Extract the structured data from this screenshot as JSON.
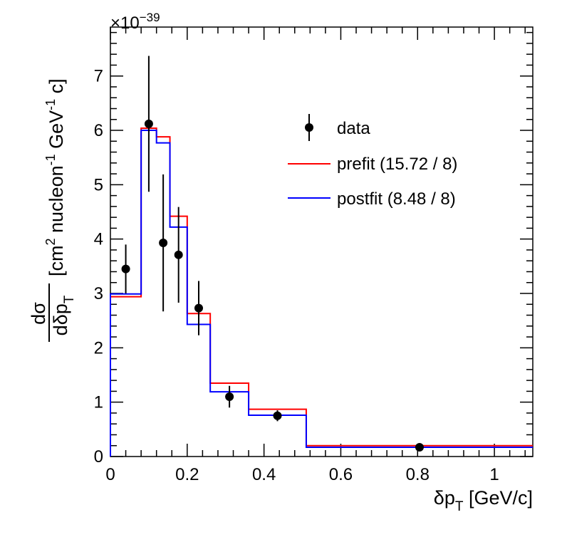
{
  "chart_data": {
    "type": "histogram",
    "title": "",
    "exponent_label": "×10",
    "exponent_power": "−39",
    "xlabel": {
      "main": "δp",
      "sub": "T",
      "unit": " [GeV/c]"
    },
    "ylabel": {
      "num": "dσ",
      "den_main": "dδp",
      "den_sub": "T",
      "part1": "[cm",
      "sup1": "2",
      "part2": " nucleon",
      "sup2": "-1",
      "part3": " GeV",
      "sup3": "-1",
      "part4": " c]"
    },
    "xlim": [
      0,
      1.1
    ],
    "ylim": [
      0,
      7.9
    ],
    "x_ticks": [
      0,
      0.2,
      0.4,
      0.6,
      0.8,
      1
    ],
    "x_tick_labels": [
      "0",
      "0.2",
      "0.4",
      "0.6",
      "0.8",
      "1"
    ],
    "y_ticks": [
      0,
      1,
      2,
      3,
      4,
      5,
      6,
      7
    ],
    "y_tick_labels": [
      "0",
      "1",
      "2",
      "3",
      "4",
      "5",
      "6",
      "7"
    ],
    "bin_edges": [
      0,
      0.08,
      0.12,
      0.155,
      0.2,
      0.26,
      0.36,
      0.51,
      1.1
    ],
    "series": [
      {
        "name": "data",
        "kind": "points",
        "color": "#000000",
        "x": [
          0.04,
          0.1,
          0.1375,
          0.1775,
          0.23,
          0.31,
          0.435,
          0.805
        ],
        "y": [
          3.45,
          6.12,
          3.93,
          3.71,
          2.73,
          1.1,
          0.75,
          0.17
        ],
        "err": [
          0.45,
          1.25,
          1.26,
          0.88,
          0.5,
          0.2,
          0.1,
          0.05
        ]
      },
      {
        "name": "prefit (15.72 / 8)",
        "kind": "step",
        "color": "#ff0000",
        "values": [
          2.94,
          6.04,
          5.88,
          4.42,
          2.63,
          1.35,
          0.87,
          0.2
        ]
      },
      {
        "name": "postfit (8.48 / 8)",
        "kind": "step",
        "color": "#0000ff",
        "values": [
          2.99,
          6.0,
          5.77,
          4.22,
          2.43,
          1.19,
          0.76,
          0.17
        ]
      }
    ],
    "legend_position": "top-right",
    "grid": false
  }
}
